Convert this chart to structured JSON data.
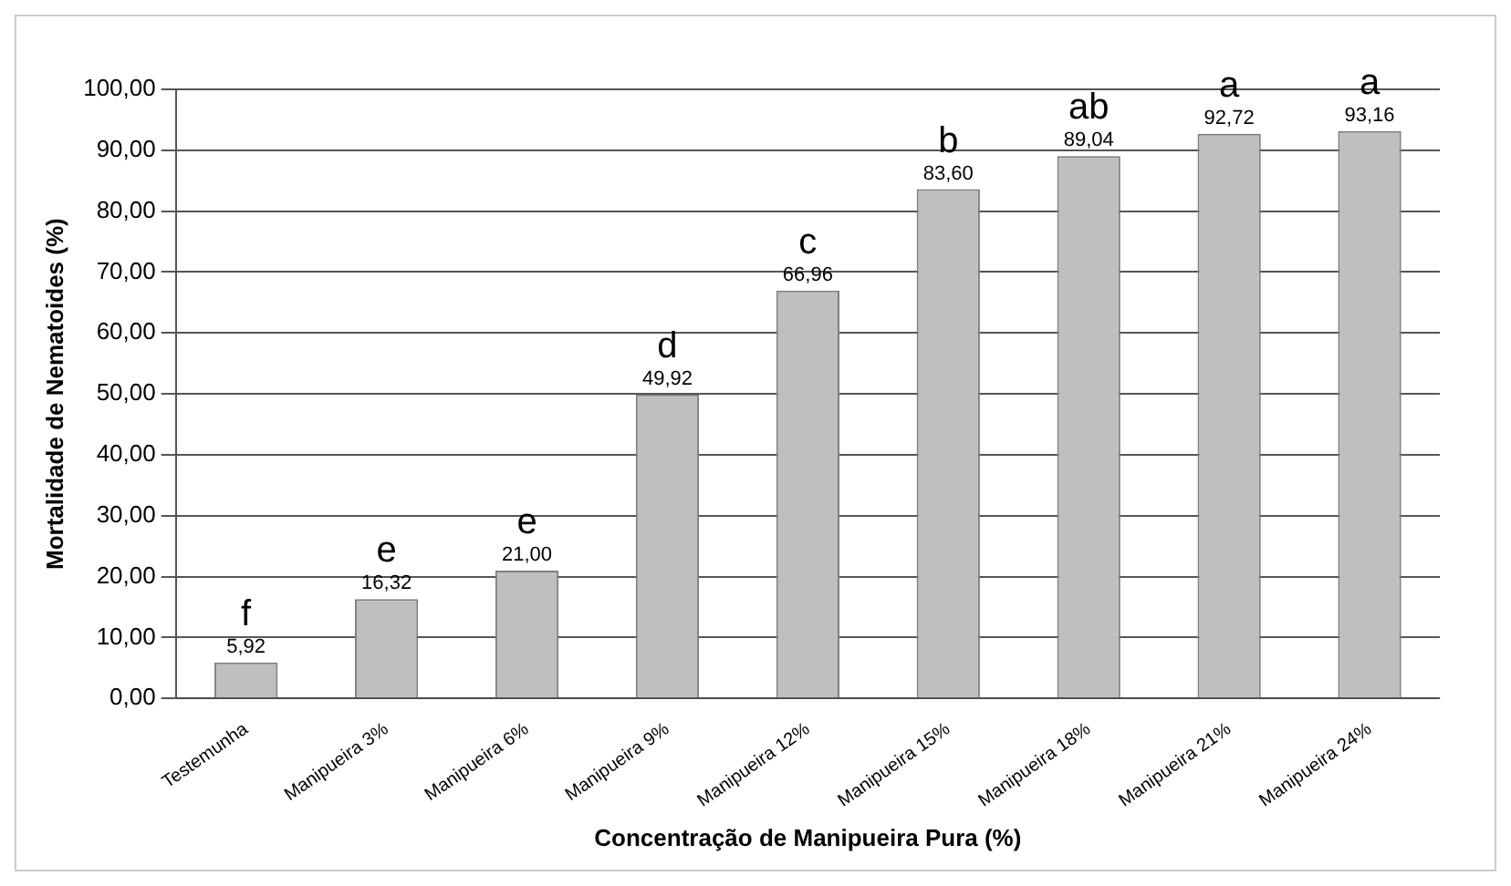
{
  "chart_data": {
    "type": "bar",
    "xlabel": "Concentração de Manipueira Pura (%)",
    "ylabel": "Mortalidade de Nematoides (%)",
    "categories": [
      "Testemunha",
      "Manipueira 3%",
      "Manipueira 6%",
      "Manipueira 9%",
      "Manipueira 12%",
      "Manipueira 15%",
      "Manipueira 18%",
      "Manipueira 21%",
      "Manipueira 24%"
    ],
    "values": [
      5.92,
      16.32,
      21.0,
      49.92,
      66.96,
      83.6,
      89.04,
      92.72,
      93.16
    ],
    "value_labels": [
      "5,92",
      "16,32",
      "21,00",
      "49,92",
      "66,96",
      "83,60",
      "89,04",
      "92,72",
      "93,16"
    ],
    "color": "#bfbfbf",
    "ylim": [
      0,
      100
    ],
    "yticks": [
      {
        "value": 0,
        "label": "0,00"
      },
      {
        "value": 10,
        "label": "10,00"
      },
      {
        "value": 20,
        "label": "20,00"
      },
      {
        "value": 30,
        "label": "30,00"
      },
      {
        "value": 40,
        "label": "40,00"
      },
      {
        "value": 50,
        "label": "50,00"
      },
      {
        "value": 60,
        "label": "60,00"
      },
      {
        "value": 70,
        "label": "70,00"
      },
      {
        "value": 80,
        "label": "80,00"
      },
      {
        "value": 90,
        "label": "90,00"
      },
      {
        "value": 100,
        "label": "100,00"
      }
    ],
    "grid": "y",
    "legend": false,
    "annotations": [
      {
        "text": "f",
        "x": "Testemunha",
        "y": 5.92
      },
      {
        "text": "e",
        "x": "Manipueira 3%",
        "y": 16.32
      },
      {
        "text": "e",
        "x": "Manipueira 6%",
        "y": 21.0
      },
      {
        "text": "d",
        "x": "Manipueira 9%",
        "y": 49.92
      },
      {
        "text": "c",
        "x": "Manipueira 12%",
        "y": 66.96
      },
      {
        "text": "b",
        "x": "Manipueira 15%",
        "y": 83.6
      },
      {
        "text": "ab",
        "x": "Manipueira 18%",
        "y": 89.04
      },
      {
        "text": "a",
        "x": "Manipueira 21%",
        "y": 92.72
      },
      {
        "text": "a",
        "x": "Manipueira 24%",
        "y": 93.16
      }
    ]
  }
}
